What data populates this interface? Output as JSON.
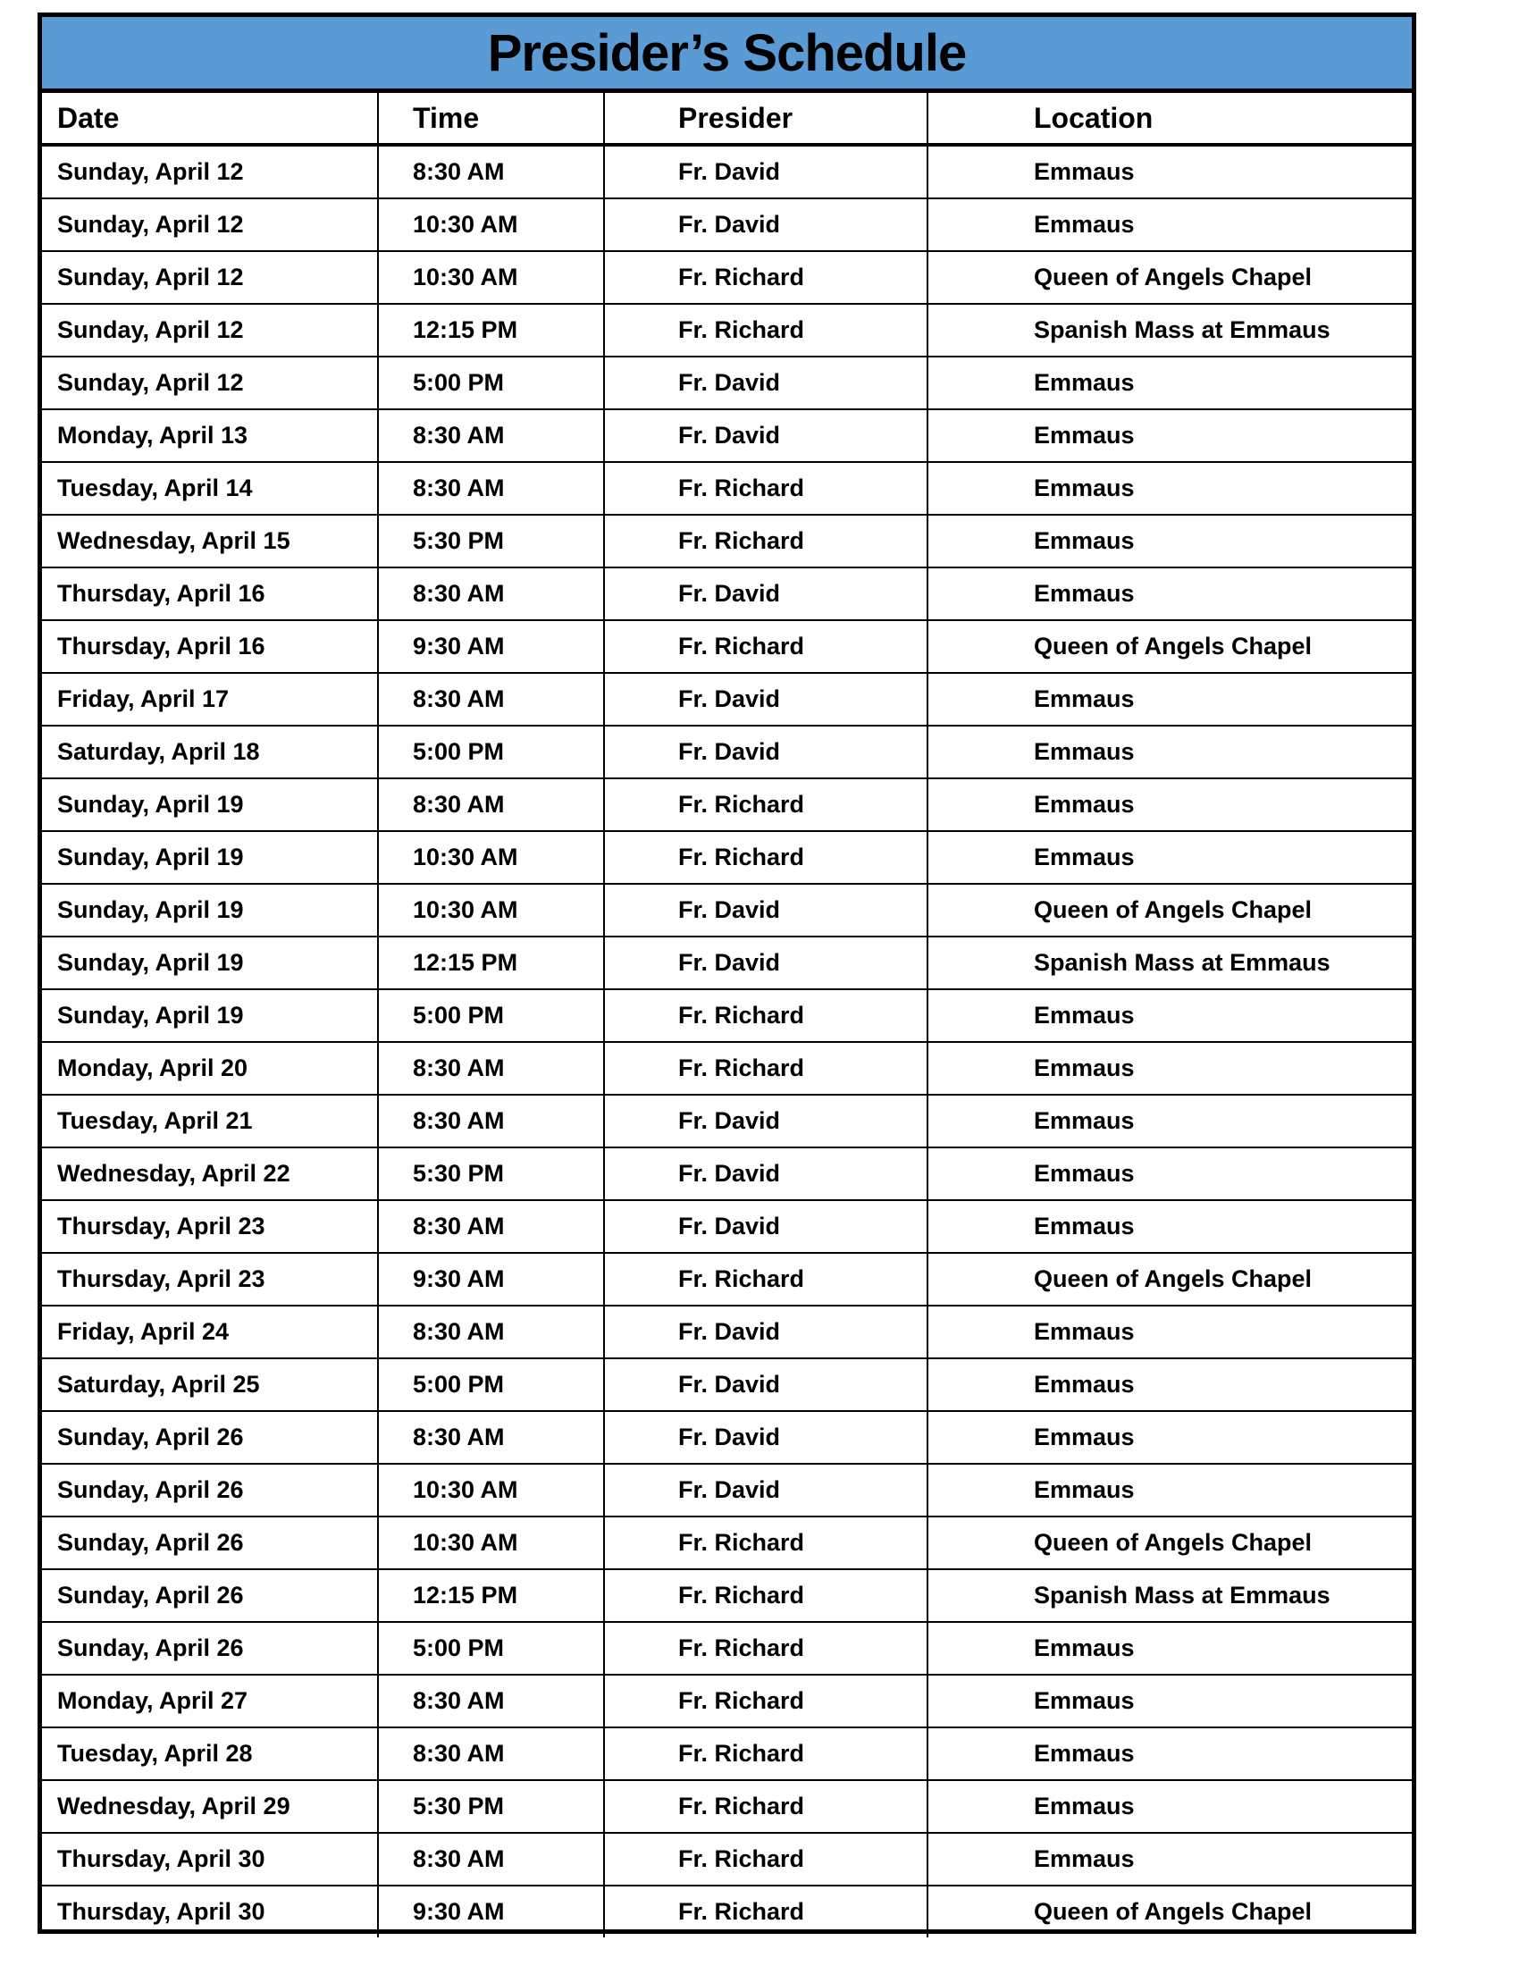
{
  "title": "Presider’s Schedule",
  "header_color": "#5b9bd5",
  "columns": [
    "Date",
    "Time",
    "Presider",
    "Location"
  ],
  "rows": [
    [
      "Sunday, April 12",
      "8:30 AM",
      "Fr. David",
      "Emmaus"
    ],
    [
      "Sunday, April 12",
      "10:30 AM",
      "Fr. David",
      "Emmaus"
    ],
    [
      "Sunday, April 12",
      "10:30 AM",
      "Fr. Richard",
      "Queen of Angels Chapel"
    ],
    [
      "Sunday, April 12",
      "12:15 PM",
      "Fr. Richard",
      "Spanish Mass at Emmaus"
    ],
    [
      "Sunday, April 12",
      "5:00 PM",
      "Fr. David",
      "Emmaus"
    ],
    [
      "Monday, April 13",
      "8:30 AM",
      "Fr. David",
      "Emmaus"
    ],
    [
      "Tuesday, April 14",
      "8:30 AM",
      "Fr. Richard",
      "Emmaus"
    ],
    [
      "Wednesday, April 15",
      "5:30 PM",
      "Fr. Richard",
      "Emmaus"
    ],
    [
      "Thursday, April 16",
      "8:30 AM",
      "Fr. David",
      "Emmaus"
    ],
    [
      "Thursday, April 16",
      "9:30 AM",
      "Fr. Richard",
      "Queen of Angels Chapel"
    ],
    [
      "Friday, April 17",
      "8:30 AM",
      "Fr. David",
      "Emmaus"
    ],
    [
      "Saturday, April 18",
      "5:00 PM",
      "Fr. David",
      "Emmaus"
    ],
    [
      "Sunday, April 19",
      "8:30 AM",
      "Fr. Richard",
      "Emmaus"
    ],
    [
      "Sunday, April 19",
      "10:30 AM",
      "Fr. Richard",
      "Emmaus"
    ],
    [
      "Sunday, April 19",
      "10:30 AM",
      "Fr. David",
      "Queen of Angels Chapel"
    ],
    [
      "Sunday, April 19",
      "12:15 PM",
      "Fr. David",
      "Spanish Mass at Emmaus"
    ],
    [
      "Sunday, April 19",
      "5:00 PM",
      "Fr. Richard",
      "Emmaus"
    ],
    [
      "Monday, April 20",
      "8:30 AM",
      "Fr. Richard",
      "Emmaus"
    ],
    [
      "Tuesday, April 21",
      "8:30 AM",
      "Fr. David",
      "Emmaus"
    ],
    [
      "Wednesday, April 22",
      "5:30 PM",
      "Fr. David",
      "Emmaus"
    ],
    [
      "Thursday, April 23",
      "8:30 AM",
      "Fr. David",
      "Emmaus"
    ],
    [
      "Thursday, April 23",
      "9:30 AM",
      "Fr. Richard",
      "Queen of Angels Chapel"
    ],
    [
      "Friday, April 24",
      "8:30 AM",
      "Fr. David",
      "Emmaus"
    ],
    [
      "Saturday, April 25",
      "5:00 PM",
      "Fr. David",
      "Emmaus"
    ],
    [
      "Sunday, April 26",
      "8:30 AM",
      "Fr. David",
      "Emmaus"
    ],
    [
      "Sunday, April 26",
      "10:30 AM",
      "Fr. David",
      "Emmaus"
    ],
    [
      "Sunday, April 26",
      "10:30 AM",
      "Fr. Richard",
      "Queen of Angels Chapel"
    ],
    [
      "Sunday, April 26",
      "12:15 PM",
      "Fr. Richard",
      "Spanish Mass at Emmaus"
    ],
    [
      "Sunday, April 26",
      "5:00 PM",
      "Fr. Richard",
      "Emmaus"
    ],
    [
      "Monday, April 27",
      "8:30 AM",
      "Fr. Richard",
      "Emmaus"
    ],
    [
      "Tuesday, April 28",
      "8:30 AM",
      "Fr. Richard",
      "Emmaus"
    ],
    [
      "Wednesday, April 29",
      "5:30 PM",
      "Fr. Richard",
      "Emmaus"
    ],
    [
      "Thursday, April 30",
      "8:30 AM",
      "Fr. Richard",
      "Emmaus"
    ],
    [
      "Thursday, April 30",
      "9:30 AM",
      "Fr. Richard",
      "Queen of Angels Chapel"
    ]
  ]
}
